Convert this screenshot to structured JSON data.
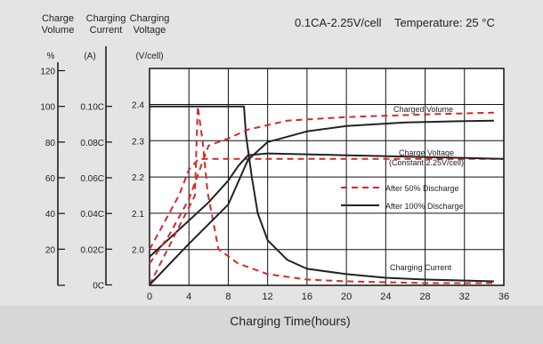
{
  "chart_data": {
    "type": "line",
    "condition": "0.1CA-2.25V/cell",
    "temperature_label": "Temperature: 25",
    "temperature_unit": "°C",
    "xlabel": "Charging Time(hours)",
    "xlim": [
      0,
      36
    ],
    "x_ticks": [
      "0",
      "4",
      "8",
      "12",
      "16",
      "20",
      "24",
      "28",
      "32",
      "36"
    ],
    "axes": {
      "volume": {
        "header": [
          "Charge",
          "Volume"
        ],
        "unit": "%",
        "ticks": [
          "120",
          "100",
          "80",
          "60",
          "40",
          "20"
        ],
        "lim": [
          0,
          120
        ]
      },
      "current": {
        "header": [
          "Charging",
          "Current"
        ],
        "unit": "(A)",
        "ticks": [
          "0.10C",
          "0.08C",
          "0.06C",
          "0.04C",
          "0.02C",
          "0C"
        ],
        "lim": [
          0,
          0.12
        ]
      },
      "voltage": {
        "header": [
          "Charging",
          "Voltage"
        ],
        "unit": "(V/cell)",
        "ticks": [
          "2.4",
          "2.3",
          "2.2",
          "2.1",
          "2.0"
        ],
        "lim": [
          1.9,
          2.45
        ]
      }
    },
    "legend": [
      {
        "label": "After 50% Discharge",
        "style": "dashed",
        "color": "#d42a2a"
      },
      {
        "label": "After 100% Discharge",
        "style": "solid",
        "color": "#222222"
      }
    ],
    "annotations": {
      "charged_volume": "Charged Volume",
      "charge_voltage": [
        "Charge Voltage",
        "(Constant 2.25V/cell)"
      ],
      "charging_current": "Charging Current"
    },
    "series": [
      {
        "curve": "voltage",
        "case": "after_50",
        "axis": "voltage",
        "style": "dashed",
        "color": "#d42a2a",
        "points": [
          [
            0,
            2.0
          ],
          [
            1,
            2.05
          ],
          [
            2,
            2.1
          ],
          [
            3,
            2.15
          ],
          [
            4,
            2.22
          ],
          [
            5,
            2.25
          ],
          [
            9,
            2.25
          ],
          [
            36,
            2.25
          ]
        ]
      },
      {
        "curve": "voltage",
        "case": "after_100",
        "axis": "voltage",
        "style": "solid",
        "color": "#222222",
        "points": [
          [
            0,
            1.98
          ],
          [
            2,
            2.03
          ],
          [
            4,
            2.08
          ],
          [
            6,
            2.13
          ],
          [
            8,
            2.19
          ],
          [
            9,
            2.23
          ],
          [
            10,
            2.26
          ],
          [
            12,
            2.265
          ],
          [
            36,
            2.25
          ]
        ]
      },
      {
        "curve": "current",
        "case": "after_50",
        "axis": "current",
        "style": "dashed",
        "color": "#d42a2a",
        "points": [
          [
            0,
            0.0
          ],
          [
            4.6,
            0.05
          ],
          [
            4.9,
            0.1
          ],
          [
            5.4,
            0.08
          ],
          [
            5.9,
            0.052
          ],
          [
            7,
            0.02
          ],
          [
            9,
            0.012
          ],
          [
            12,
            0.006
          ],
          [
            16,
            0.003
          ],
          [
            20,
            0.002
          ],
          [
            28,
            0.001
          ],
          [
            35,
            0.001
          ]
        ]
      },
      {
        "curve": "current",
        "case": "after_100",
        "axis": "current",
        "style": "solid",
        "color": "#222222",
        "points": [
          [
            0,
            0.1
          ],
          [
            9.6,
            0.1
          ],
          [
            9.8,
            0.084
          ],
          [
            10.4,
            0.06
          ],
          [
            11,
            0.04
          ],
          [
            12,
            0.025
          ],
          [
            14,
            0.014
          ],
          [
            16,
            0.009
          ],
          [
            20,
            0.006
          ],
          [
            24,
            0.004
          ],
          [
            28,
            0.003
          ],
          [
            35,
            0.002
          ]
        ]
      },
      {
        "curve": "volume",
        "case": "after_50",
        "axis": "volume",
        "style": "dashed",
        "color": "#d42a2a",
        "points": [
          [
            0,
            12
          ],
          [
            2,
            28
          ],
          [
            4,
            48
          ],
          [
            6,
            78
          ],
          [
            8,
            82
          ],
          [
            10,
            87
          ],
          [
            14,
            92
          ],
          [
            20,
            94
          ],
          [
            28,
            95.5
          ],
          [
            35,
            96.5
          ]
        ]
      },
      {
        "curve": "volume",
        "case": "after_100",
        "axis": "volume",
        "style": "solid",
        "color": "#222222",
        "points": [
          [
            0,
            0
          ],
          [
            4,
            23
          ],
          [
            8,
            45
          ],
          [
            10,
            70
          ],
          [
            12,
            80
          ],
          [
            16,
            86
          ],
          [
            20,
            89
          ],
          [
            26,
            91
          ],
          [
            30,
            91.5
          ],
          [
            35,
            92
          ]
        ]
      }
    ]
  }
}
